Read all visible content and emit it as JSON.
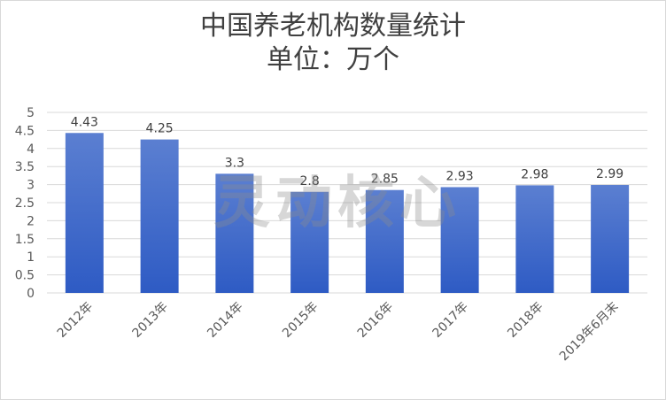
{
  "chart_data": {
    "type": "bar",
    "title_line1": "中国养老机构数量统计",
    "title_line2": "单位：万个",
    "categories": [
      "2012年",
      "2013年",
      "2014年",
      "2015年",
      "2016年",
      "2017年",
      "2018年",
      "2019年6月末"
    ],
    "values": [
      4.43,
      4.25,
      3.3,
      2.8,
      2.85,
      2.93,
      2.98,
      2.99
    ],
    "value_labels": [
      "4.43",
      "4.25",
      "3.3",
      "2.8",
      "2.85",
      "2.93",
      "2.98",
      "2.99"
    ],
    "yticks": [
      "0",
      "0.5",
      "1",
      "1.5",
      "2",
      "2.5",
      "3",
      "3.5",
      "4",
      "4.5",
      "5"
    ],
    "ylim": [
      0,
      5
    ],
    "grid": true,
    "legend": "none",
    "bar_color_top": "#5b7fd1",
    "bar_color_bottom": "#2e5bc4"
  },
  "watermark": "灵动核心"
}
